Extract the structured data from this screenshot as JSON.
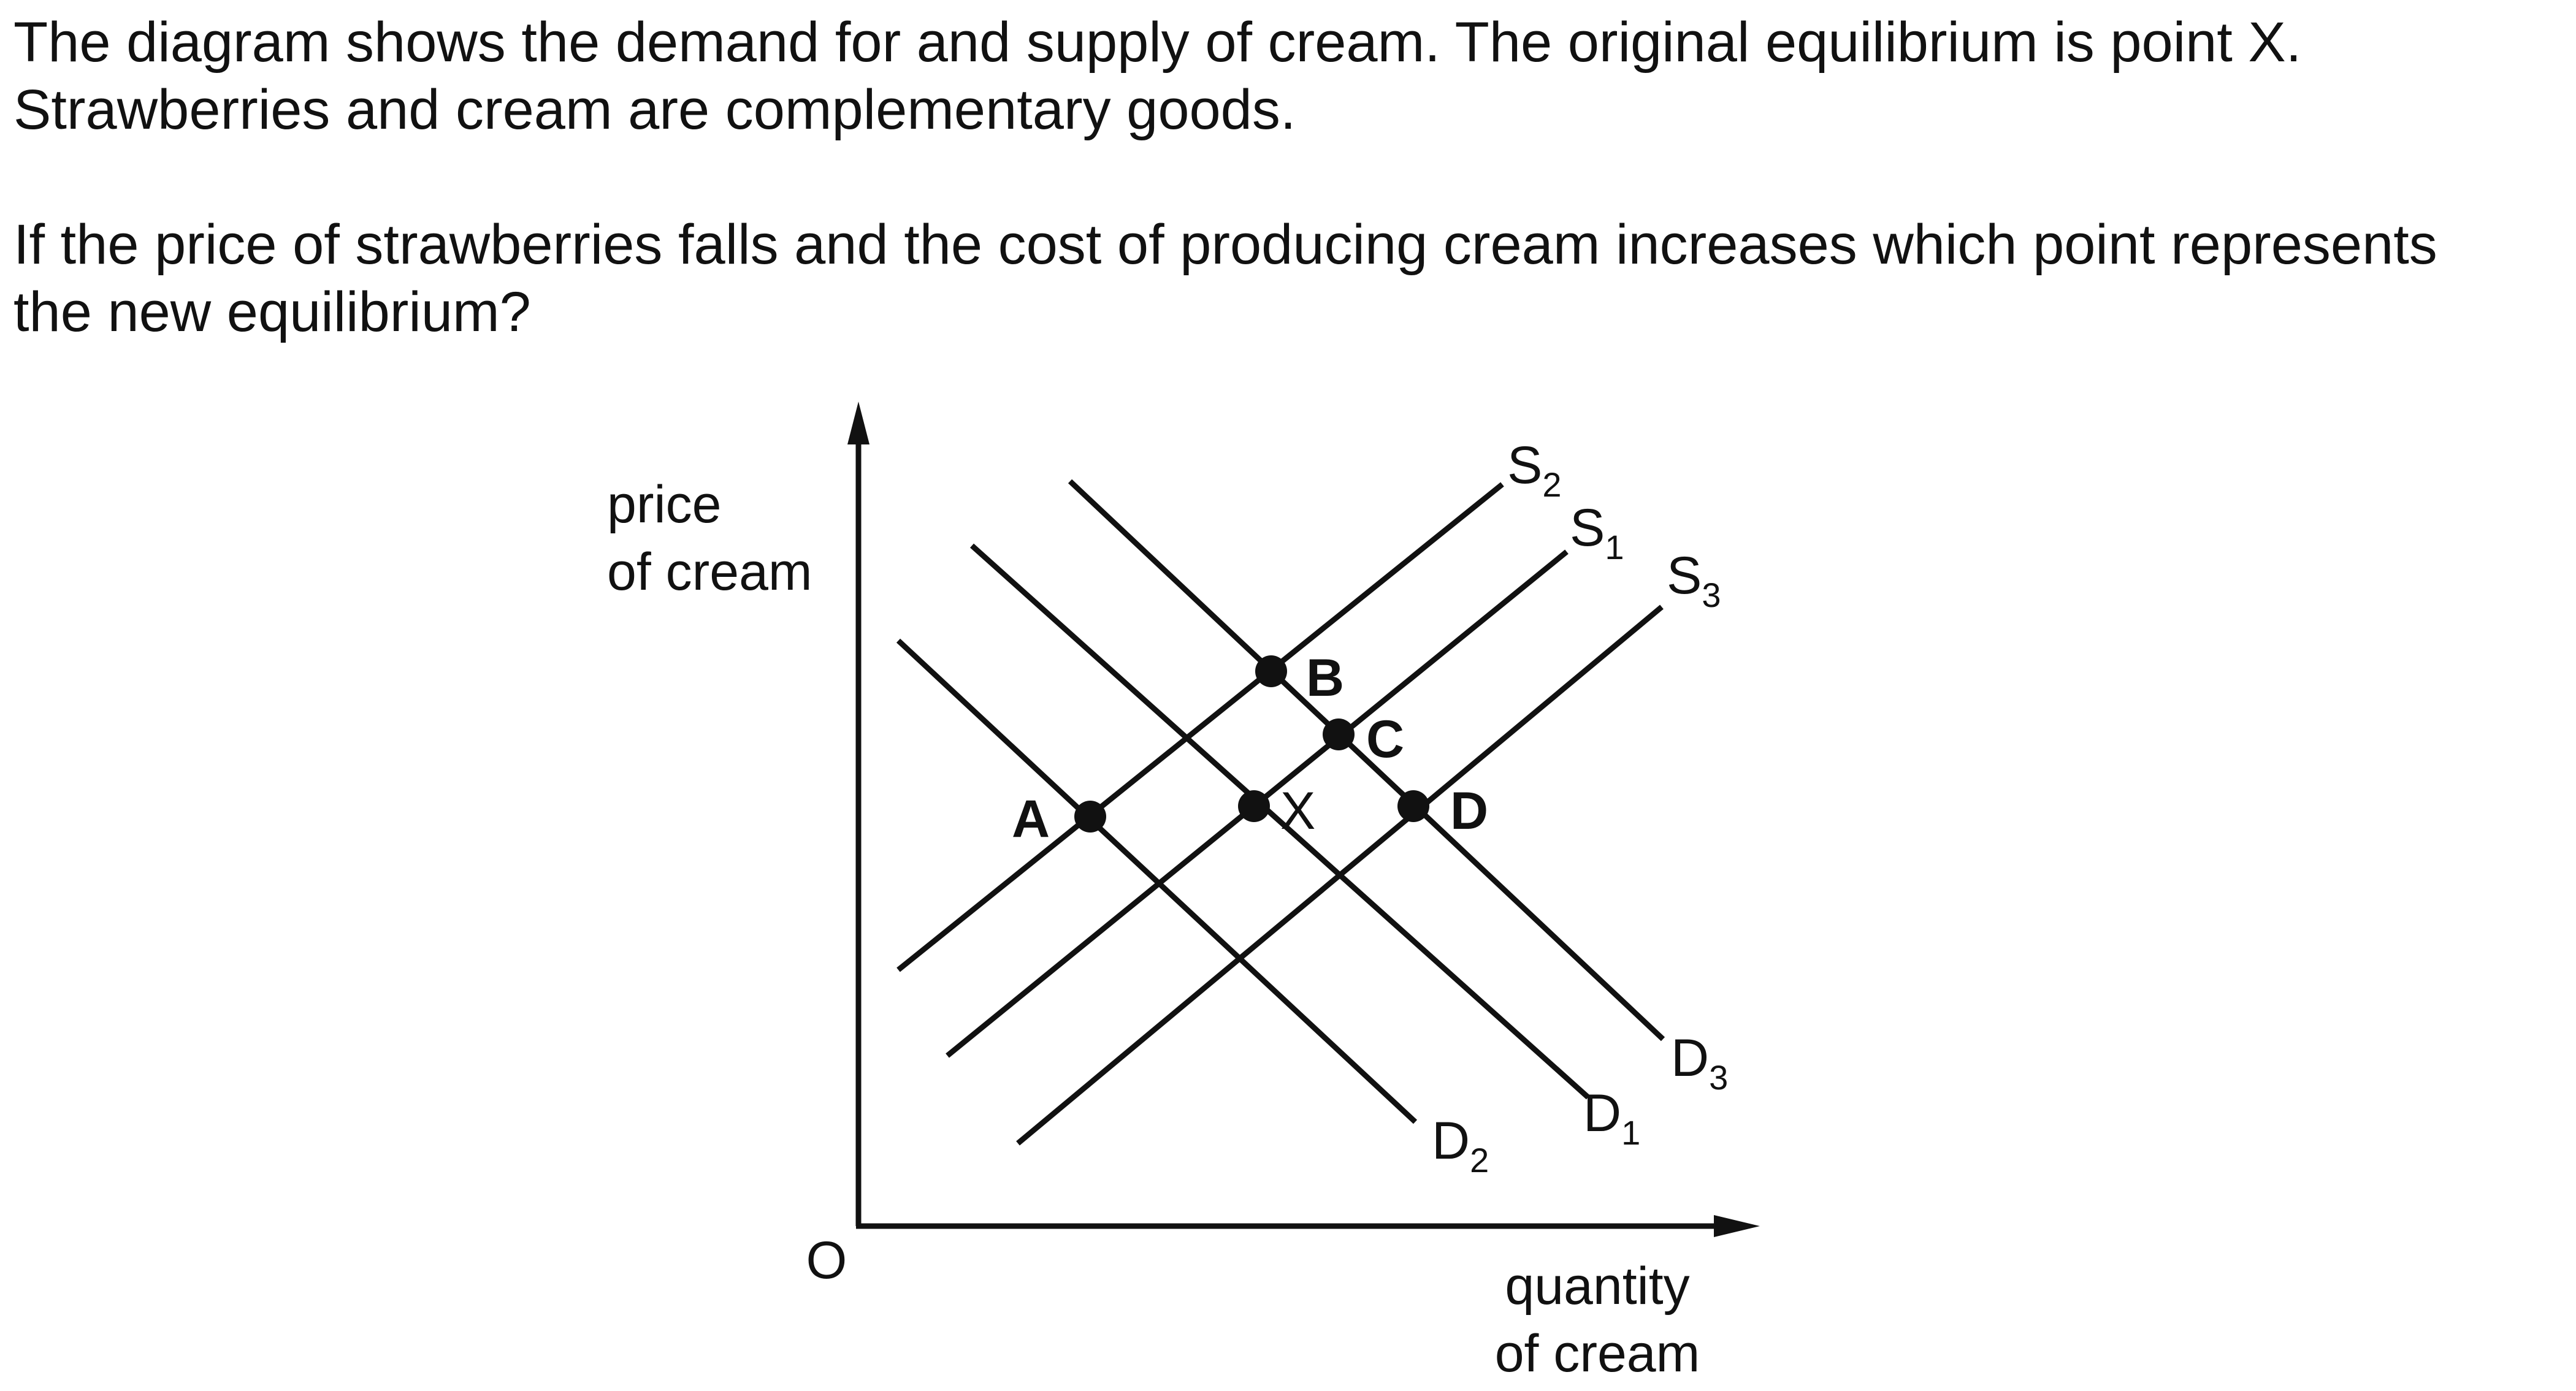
{
  "question": {
    "lines": [
      "The diagram shows the demand for and supply of cream. The original equilibrium is point X.",
      "Strawberries and cream are complementary goods.",
      "If the price of strawberries falls and the cost of producing cream increases which point represents",
      "the new equilibrium?"
    ]
  },
  "diagram": {
    "axes": {
      "y_label_line1": "price",
      "y_label_line2": "of cream",
      "x_label_line1": "quantity",
      "x_label_line2": "of cream",
      "origin": "O"
    },
    "curves": [
      {
        "id": "S2",
        "letter": "S",
        "sub": "2",
        "kind": "supply"
      },
      {
        "id": "S1",
        "letter": "S",
        "sub": "1",
        "kind": "supply"
      },
      {
        "id": "S3",
        "letter": "S",
        "sub": "3",
        "kind": "supply"
      },
      {
        "id": "D2",
        "letter": "D",
        "sub": "2",
        "kind": "demand"
      },
      {
        "id": "D1",
        "letter": "D",
        "sub": "1",
        "kind": "demand"
      },
      {
        "id": "D3",
        "letter": "D",
        "sub": "3",
        "kind": "demand"
      }
    ],
    "points": [
      {
        "label": "A",
        "bold": true
      },
      {
        "label": "B",
        "bold": true
      },
      {
        "label": "C",
        "bold": true
      },
      {
        "label": "X",
        "bold": false
      },
      {
        "label": "D",
        "bold": true
      }
    ],
    "line_color": "#111111"
  }
}
